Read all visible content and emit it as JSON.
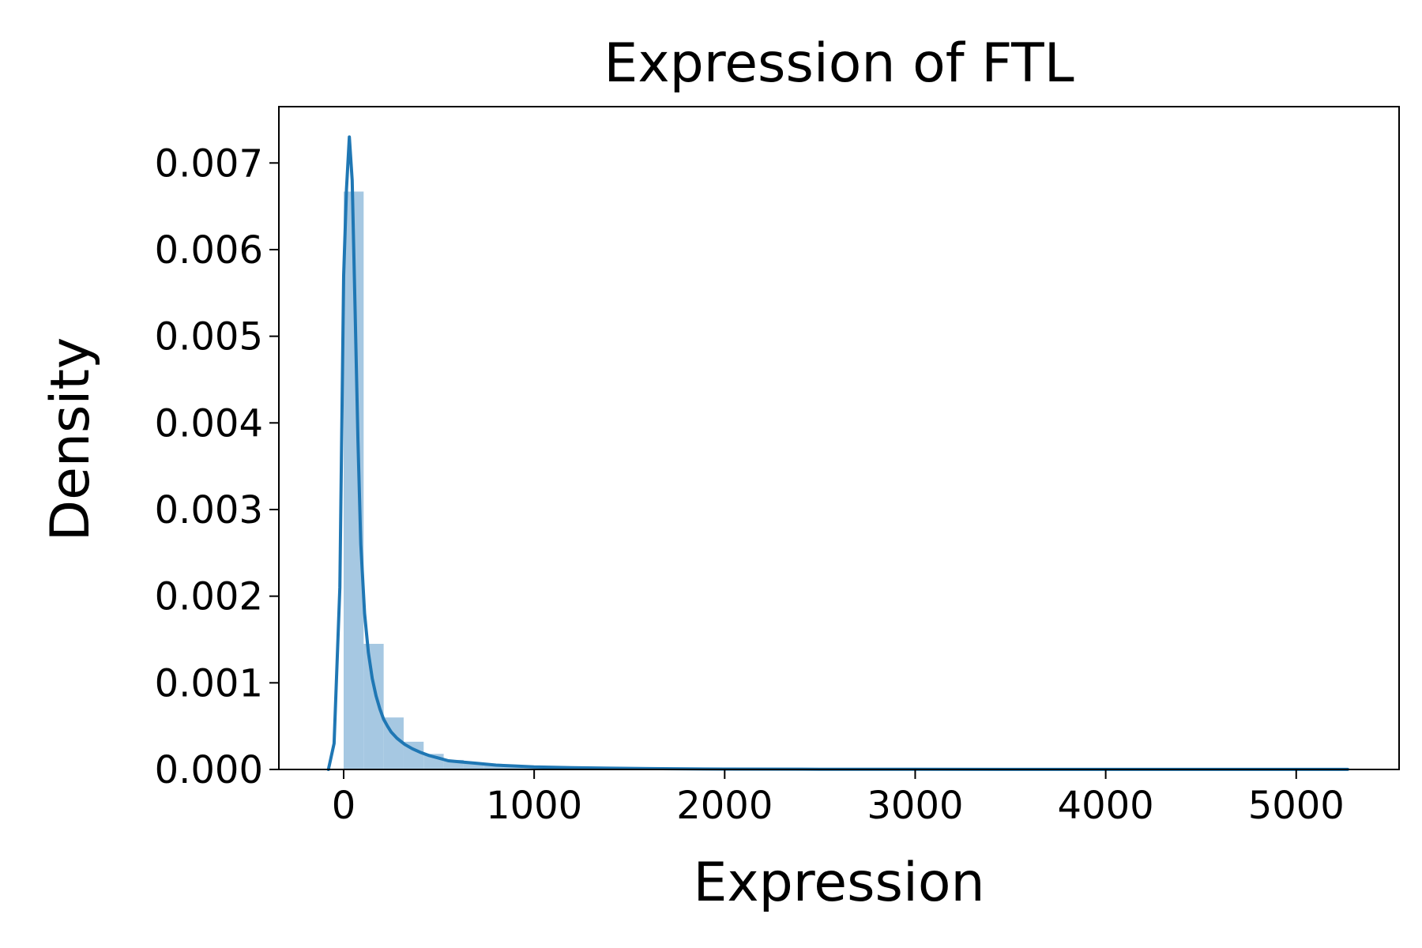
{
  "chart_data": {
    "type": "histogram",
    "title": "Expression of FTL",
    "xlabel": "Expression",
    "ylabel": "Density",
    "xlim": [
      -340,
      5540
    ],
    "ylim": [
      0,
      0.00765
    ],
    "x_ticks": [
      {
        "value": 0,
        "label": "0"
      },
      {
        "value": 1000,
        "label": "1000"
      },
      {
        "value": 2000,
        "label": "2000"
      },
      {
        "value": 3000,
        "label": "3000"
      },
      {
        "value": 4000,
        "label": "4000"
      },
      {
        "value": 5000,
        "label": "5000"
      }
    ],
    "y_ticks": [
      {
        "value": 0.0,
        "label": "0.000"
      },
      {
        "value": 0.001,
        "label": "0.001"
      },
      {
        "value": 0.002,
        "label": "0.002"
      },
      {
        "value": 0.003,
        "label": "0.003"
      },
      {
        "value": 0.004,
        "label": "0.004"
      },
      {
        "value": 0.005,
        "label": "0.005"
      },
      {
        "value": 0.006,
        "label": "0.006"
      },
      {
        "value": 0.007,
        "label": "0.007"
      }
    ],
    "grid": false,
    "colors": {
      "bars": "#a6c8e2",
      "kde": "#1f77b4"
    },
    "bins": [
      {
        "x0": 0,
        "x1": 105,
        "density": 0.00667
      },
      {
        "x0": 105,
        "x1": 210,
        "density": 0.00145
      },
      {
        "x0": 210,
        "x1": 315,
        "density": 0.0006
      },
      {
        "x0": 315,
        "x1": 420,
        "density": 0.00032
      },
      {
        "x0": 420,
        "x1": 525,
        "density": 0.00018
      },
      {
        "x0": 525,
        "x1": 630,
        "density": 0.00011
      },
      {
        "x0": 630,
        "x1": 735,
        "density": 7e-05
      },
      {
        "x0": 735,
        "x1": 840,
        "density": 5e-05
      },
      {
        "x0": 840,
        "x1": 945,
        "density": 4e-05
      },
      {
        "x0": 945,
        "x1": 1050,
        "density": 3e-05
      },
      {
        "x0": 1050,
        "x1": 1155,
        "density": 2e-05
      },
      {
        "x0": 1155,
        "x1": 1260,
        "density": 2e-05
      },
      {
        "x0": 1260,
        "x1": 1365,
        "density": 1e-05
      },
      {
        "x0": 1365,
        "x1": 1470,
        "density": 1e-05
      },
      {
        "x0": 1470,
        "x1": 1575,
        "density": 1e-05
      }
    ],
    "kde": {
      "x": [
        -80,
        -50,
        -20,
        0,
        15,
        30,
        45,
        60,
        75,
        90,
        110,
        130,
        150,
        170,
        190,
        210,
        230,
        250,
        280,
        320,
        360,
        400,
        450,
        500,
        550,
        600,
        700,
        800,
        900,
        1000,
        1200,
        1400,
        1600,
        2000,
        2500,
        3000,
        3500,
        4000,
        4500,
        5000,
        5270
      ],
      "y": [
        0.0,
        0.0003,
        0.0021,
        0.0057,
        0.0067,
        0.0073,
        0.0068,
        0.0053,
        0.0038,
        0.0026,
        0.0018,
        0.00135,
        0.00105,
        0.00085,
        0.0007,
        0.00058,
        0.0005,
        0.00043,
        0.00036,
        0.00029,
        0.00024,
        0.0002,
        0.00016,
        0.00013,
        0.0001,
        9e-05,
        7e-05,
        5e-05,
        4e-05,
        3e-05,
        2e-05,
        1.5e-05,
        1e-05,
        5e-06,
        3e-06,
        2e-06,
        1e-06,
        1e-06,
        1e-06,
        1e-06,
        5e-07
      ]
    }
  }
}
